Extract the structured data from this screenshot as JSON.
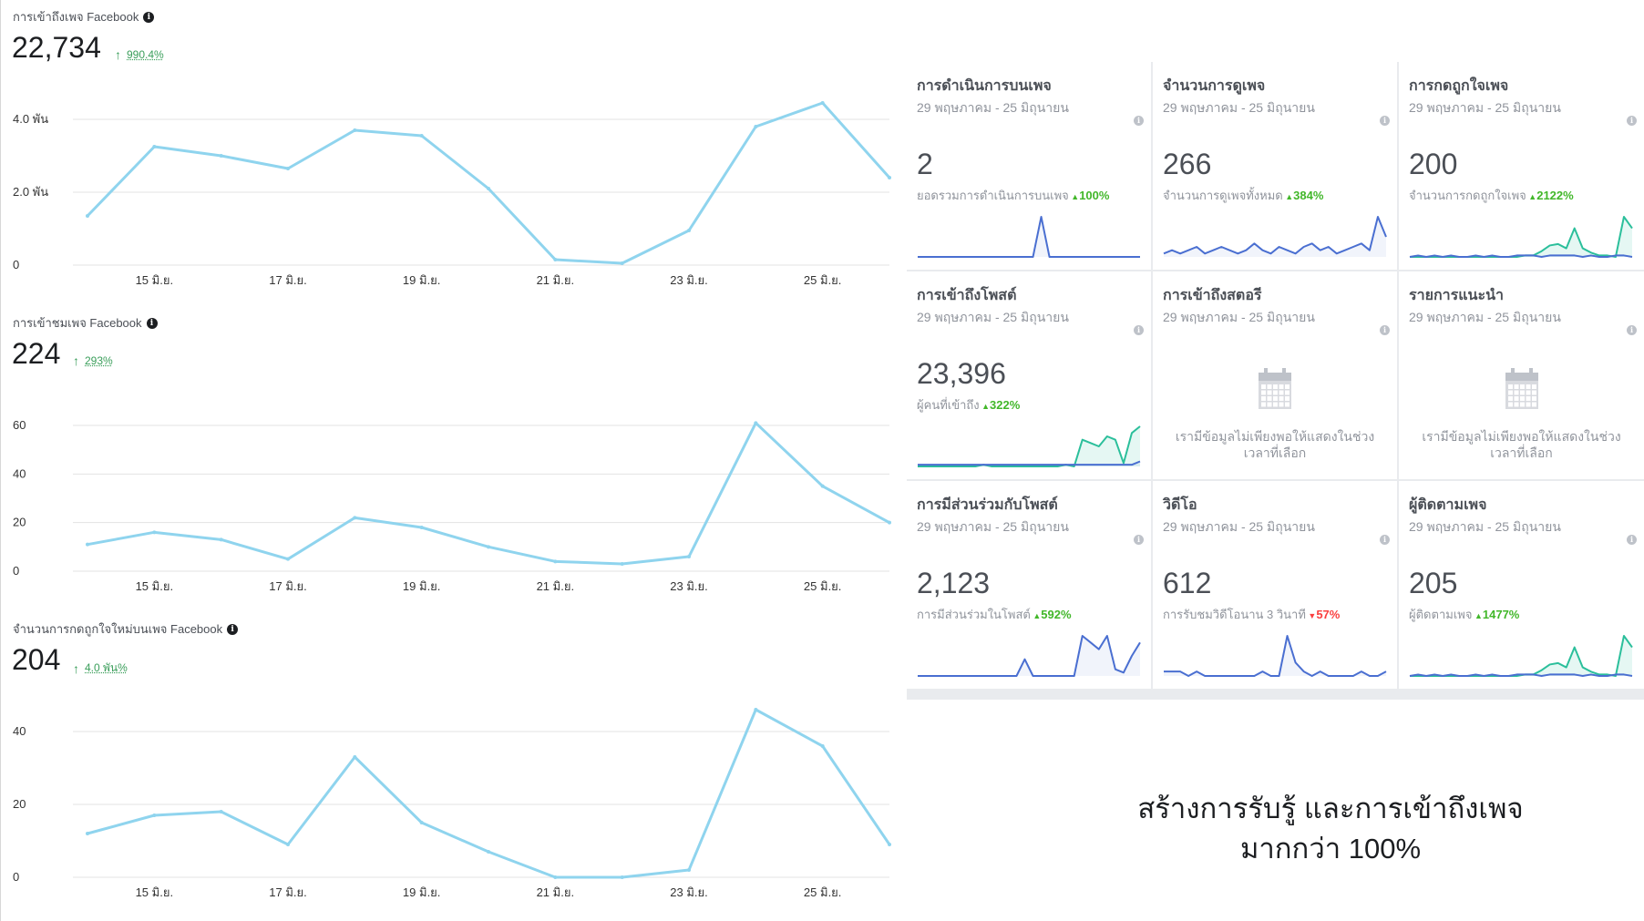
{
  "left_metrics": [
    {
      "title": "การเข้าถึงเพจ Facebook",
      "value": "22,734",
      "change": "990.4%",
      "y_ticks": [
        "0",
        "2.0 พัน",
        "4.0 พัน"
      ],
      "chart_data": {
        "type": "line",
        "title": "การเข้าถึงเพจ Facebook",
        "x_tick_labels": [
          "15 มิ.ย.",
          "17 มิ.ย.",
          "19 มิ.ย.",
          "21 มิ.ย.",
          "23 มิ.ย.",
          "25 มิ.ย."
        ],
        "x": [
          "14 มิ.ย.",
          "15 มิ.ย.",
          "16 มิ.ย.",
          "17 มิ.ย.",
          "18 มิ.ย.",
          "19 มิ.ย.",
          "20 มิ.ย.",
          "21 มิ.ย.",
          "22 มิ.ย.",
          "23 มิ.ย.",
          "24 มิ.ย.",
          "25 มิ.ย.",
          "26 มิ.ย."
        ],
        "values": [
          1350,
          3250,
          3000,
          2650,
          3700,
          3550,
          2100,
          150,
          50,
          950,
          3800,
          4450,
          2400
        ],
        "ylim": [
          0,
          4000
        ],
        "grid": true
      }
    },
    {
      "title": "การเข้าชมเพจ Facebook",
      "value": "224",
      "change": "293%",
      "y_ticks": [
        "0",
        "20",
        "40",
        "60"
      ],
      "chart_data": {
        "type": "line",
        "title": "การเข้าชมเพจ Facebook",
        "x_tick_labels": [
          "15 มิ.ย.",
          "17 มิ.ย.",
          "19 มิ.ย.",
          "21 มิ.ย.",
          "23 มิ.ย.",
          "25 มิ.ย."
        ],
        "x": [
          "14 มิ.ย.",
          "15 มิ.ย.",
          "16 มิ.ย.",
          "17 มิ.ย.",
          "18 มิ.ย.",
          "19 มิ.ย.",
          "20 มิ.ย.",
          "21 มิ.ย.",
          "22 มิ.ย.",
          "23 มิ.ย.",
          "24 มิ.ย.",
          "25 มิ.ย.",
          "26 มิ.ย."
        ],
        "values": [
          11,
          16,
          13,
          5,
          22,
          18,
          10,
          4,
          3,
          6,
          61,
          35,
          20
        ],
        "ylim": [
          0,
          60
        ],
        "grid": true
      }
    },
    {
      "title": "จำนวนการกดถูกใจใหม่บนเพจ Facebook",
      "value": "204",
      "change": "4.0 พัน%",
      "y_ticks": [
        "0",
        "20",
        "40"
      ],
      "chart_data": {
        "type": "line",
        "title": "จำนวนการกดถูกใจใหม่บนเพจ Facebook",
        "x_tick_labels": [
          "15 มิ.ย.",
          "17 มิ.ย.",
          "19 มิ.ย.",
          "21 มิ.ย.",
          "23 มิ.ย.",
          "25 มิ.ย."
        ],
        "x": [
          "14 มิ.ย.",
          "15 มิ.ย.",
          "16 มิ.ย.",
          "17 มิ.ย.",
          "18 มิ.ย.",
          "19 มิ.ย.",
          "20 มิ.ย.",
          "21 มิ.ย.",
          "22 มิ.ย.",
          "23 มิ.ย.",
          "24 มิ.ย.",
          "25 มิ.ย.",
          "26 มิ.ย."
        ],
        "values": [
          12,
          17,
          18,
          9,
          33,
          15,
          7,
          0,
          0,
          2,
          46,
          36,
          9
        ],
        "ylim": [
          0,
          40
        ],
        "grid": true
      }
    }
  ],
  "cards": [
    {
      "title": "การดำเนินการบนเพจ",
      "date": "29 พฤษภาคม - 25 มิถุนายน",
      "value": "2",
      "sub_label": "ยอดรวมการดำเนินการบนเพจ",
      "sub_change": "100%",
      "direction": "up",
      "spark_blue": [
        0,
        0,
        0,
        0,
        0,
        0,
        0,
        0,
        0,
        0,
        0,
        0,
        0,
        0,
        0,
        1,
        0,
        0,
        0,
        0,
        0,
        0,
        0,
        0,
        0,
        0,
        0,
        0
      ],
      "spark_green": null
    },
    {
      "title": "จำนวนการดูเพจ",
      "date": "29 พฤษภาคม - 25 มิถุนายน",
      "value": "266",
      "sub_label": "จำนวนการดูเพจทั้งหมด",
      "sub_change": "384%",
      "direction": "up",
      "spark_blue": [
        1,
        2,
        1,
        2,
        3,
        1,
        2,
        3,
        2,
        1,
        2,
        4,
        2,
        1,
        3,
        2,
        1,
        3,
        4,
        2,
        3,
        1,
        2,
        3,
        4,
        2,
        12,
        6
      ],
      "spark_green": null
    },
    {
      "title": "การกดถูกใจเพจ",
      "date": "29 พฤษภาคม - 25 มิถุนายน",
      "value": "200",
      "sub_label": "จำนวนการกดถูกใจเพจ",
      "sub_change": "2122%",
      "direction": "up",
      "spark_blue": [
        0,
        1,
        0,
        1,
        0,
        1,
        0,
        0,
        1,
        0,
        1,
        0,
        0,
        1,
        1,
        1,
        0,
        1,
        1,
        1,
        1,
        0,
        1,
        0,
        0,
        1,
        1,
        0
      ],
      "spark_green": [
        0,
        0,
        0,
        0,
        0,
        0,
        0,
        0,
        0,
        0,
        0,
        0,
        0,
        0,
        1,
        1,
        4,
        8,
        9,
        6,
        20,
        6,
        3,
        1,
        1,
        0,
        28,
        20
      ]
    },
    {
      "title": "การเข้าถึงโพสต์",
      "date": "29 พฤษภาคม - 25 มิถุนายน",
      "value": "23,396",
      "sub_label": "ผู้คนที่เข้าถึง",
      "sub_change": "322%",
      "direction": "up",
      "spark_blue": [
        1,
        1,
        1,
        1,
        1,
        1,
        1,
        1,
        1,
        1,
        1,
        1,
        1,
        1,
        1,
        1,
        1,
        1,
        1,
        1,
        1,
        1,
        1,
        1,
        1,
        1,
        1,
        3
      ],
      "spark_green": [
        0,
        0,
        0,
        0,
        0,
        0,
        0,
        0,
        1,
        0,
        0,
        0,
        0,
        0,
        0,
        0,
        0,
        0,
        1,
        0,
        16,
        14,
        12,
        18,
        16,
        2,
        20,
        24
      ]
    },
    {
      "title": "การเข้าถึงสตอรี",
      "date": "29 พฤษภาคม - 25 มิถุนายน",
      "empty": true,
      "empty_text": "เรามีข้อมูลไม่เพียงพอให้แสดงในช่วงเวลาที่เลือก"
    },
    {
      "title": "รายการแนะนำ",
      "date": "29 พฤษภาคม - 25 มิถุนายน",
      "empty": true,
      "empty_text": "เรามีข้อมูลไม่เพียงพอให้แสดงในช่วงเวลาที่เลือก"
    },
    {
      "title": "การมีส่วนร่วมกับโพสต์",
      "date": "29 พฤษภาคม - 25 มิถุนายน",
      "value": "2,123",
      "sub_label": "การมีส่วนร่วมในโพสต์",
      "sub_change": "592%",
      "direction": "up",
      "spark_blue": [
        0,
        0,
        0,
        0,
        0,
        0,
        0,
        0,
        0,
        0,
        0,
        0,
        0,
        5,
        0,
        0,
        0,
        0,
        0,
        0,
        12,
        10,
        8,
        12,
        2,
        1,
        6,
        10
      ],
      "spark_green": null
    },
    {
      "title": "วิดีโอ",
      "date": "29 พฤษภาคม - 25 มิถุนายน",
      "value": "612",
      "sub_label": "การรับชมวิดีโอนาน 3 วินาที",
      "sub_change": "57%",
      "direction": "down",
      "spark_blue": [
        1,
        1,
        1,
        0,
        1,
        0,
        0,
        0,
        0,
        0,
        0,
        0,
        1,
        0,
        0,
        9,
        3,
        1,
        0,
        1,
        0,
        0,
        0,
        0,
        1,
        0,
        0,
        1
      ],
      "spark_green": null
    },
    {
      "title": "ผู้ติดตามเพจ",
      "date": "29 พฤษภาคม - 25 มิถุนายน",
      "value": "205",
      "sub_label": "ผู้ติดตามเพจ",
      "sub_change": "1477%",
      "direction": "up",
      "spark_blue": [
        0,
        1,
        0,
        1,
        0,
        1,
        0,
        0,
        1,
        0,
        1,
        0,
        0,
        1,
        1,
        1,
        0,
        1,
        1,
        1,
        1,
        0,
        1,
        0,
        0,
        1,
        1,
        0
      ],
      "spark_green": [
        0,
        0,
        0,
        0,
        0,
        0,
        0,
        0,
        0,
        0,
        0,
        0,
        0,
        0,
        1,
        1,
        4,
        8,
        9,
        6,
        20,
        6,
        3,
        1,
        1,
        0,
        28,
        20
      ]
    }
  ],
  "caption": {
    "line1": "สร้างการรับรู้ และการเข้าถึงเพจ",
    "line2": "มากกว่า 100%"
  },
  "colors": {
    "left_line": "#8fd4ee",
    "spark_blue": "#4a6fd1",
    "spark_green": "#2bbf9b",
    "up": "#42b72a",
    "down": "#fa3e3e"
  }
}
